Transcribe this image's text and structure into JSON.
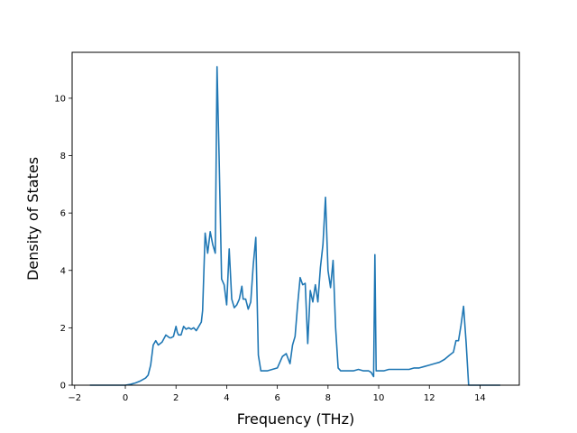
{
  "chart_data": {
    "type": "line",
    "title": "",
    "xlabel": "Frequency (THz)",
    "ylabel": "Density of States",
    "xlim": [
      -2.1,
      15.55
    ],
    "ylim": [
      0,
      11.6
    ],
    "xticks": [
      -2,
      0,
      2,
      4,
      6,
      8,
      10,
      12,
      14
    ],
    "yticks": [
      0,
      2,
      4,
      6,
      8,
      10
    ],
    "xtick_labels": [
      "−2",
      "0",
      "2",
      "4",
      "6",
      "8",
      "10",
      "12",
      "14"
    ],
    "ytick_labels": [
      "0",
      "2",
      "4",
      "6",
      "8",
      "10"
    ],
    "grid": false,
    "legend": "none",
    "series": [
      {
        "color": "#1f77b4",
        "x": [
          -1.4,
          -0.5,
          0.0,
          0.2,
          0.4,
          0.6,
          0.8,
          0.9,
          1.0,
          1.1,
          1.2,
          1.3,
          1.45,
          1.6,
          1.75,
          1.8,
          1.9,
          2.0,
          2.05,
          2.1,
          2.2,
          2.3,
          2.4,
          2.5,
          2.6,
          2.7,
          2.8,
          2.9,
          3.0,
          3.05,
          3.15,
          3.25,
          3.35,
          3.45,
          3.55,
          3.62,
          3.7,
          3.8,
          3.9,
          4.0,
          4.1,
          4.2,
          4.3,
          4.4,
          4.5,
          4.6,
          4.65,
          4.75,
          4.85,
          4.95,
          5.05,
          5.15,
          5.25,
          5.35,
          5.45,
          5.6,
          5.8,
          6.0,
          6.2,
          6.35,
          6.5,
          6.6,
          6.7,
          6.8,
          6.9,
          7.0,
          7.1,
          7.2,
          7.3,
          7.4,
          7.5,
          7.6,
          7.7,
          7.8,
          7.9,
          8.0,
          8.1,
          8.2,
          8.3,
          8.4,
          8.5,
          8.7,
          9.0,
          9.2,
          9.4,
          9.6,
          9.7,
          9.8,
          9.85,
          9.9,
          10.0,
          10.2,
          10.4,
          10.6,
          10.8,
          11.0,
          11.2,
          11.4,
          11.6,
          11.8,
          12.0,
          12.2,
          12.4,
          12.6,
          12.8,
          12.95,
          13.05,
          13.15,
          13.25,
          13.35,
          13.45,
          13.55,
          13.6,
          14.0,
          14.5,
          14.8
        ],
        "y": [
          0.0,
          0.0,
          0.0,
          0.03,
          0.08,
          0.15,
          0.25,
          0.35,
          0.7,
          1.4,
          1.55,
          1.4,
          1.5,
          1.75,
          1.65,
          1.65,
          1.7,
          2.05,
          1.85,
          1.75,
          1.75,
          2.05,
          1.95,
          2.0,
          1.95,
          2.0,
          1.9,
          2.05,
          2.2,
          2.6,
          5.3,
          4.6,
          5.35,
          4.9,
          4.6,
          11.1,
          8.0,
          3.7,
          3.5,
          2.8,
          4.75,
          3.0,
          2.7,
          2.8,
          3.0,
          3.45,
          3.0,
          3.0,
          2.65,
          2.9,
          4.2,
          5.15,
          1.05,
          0.5,
          0.5,
          0.5,
          0.55,
          0.6,
          1.0,
          1.1,
          0.75,
          1.4,
          1.7,
          2.8,
          3.75,
          3.5,
          3.55,
          1.45,
          3.3,
          2.9,
          3.5,
          2.9,
          4.1,
          4.9,
          6.55,
          4.0,
          3.4,
          4.35,
          2.0,
          0.6,
          0.5,
          0.5,
          0.5,
          0.55,
          0.5,
          0.5,
          0.45,
          0.3,
          4.55,
          0.5,
          0.5,
          0.5,
          0.55,
          0.55,
          0.55,
          0.55,
          0.55,
          0.6,
          0.6,
          0.65,
          0.7,
          0.75,
          0.8,
          0.9,
          1.05,
          1.15,
          1.55,
          1.55,
          2.1,
          2.75,
          1.5,
          0.0,
          0.0,
          0.0,
          0.0,
          0.0
        ]
      }
    ]
  }
}
